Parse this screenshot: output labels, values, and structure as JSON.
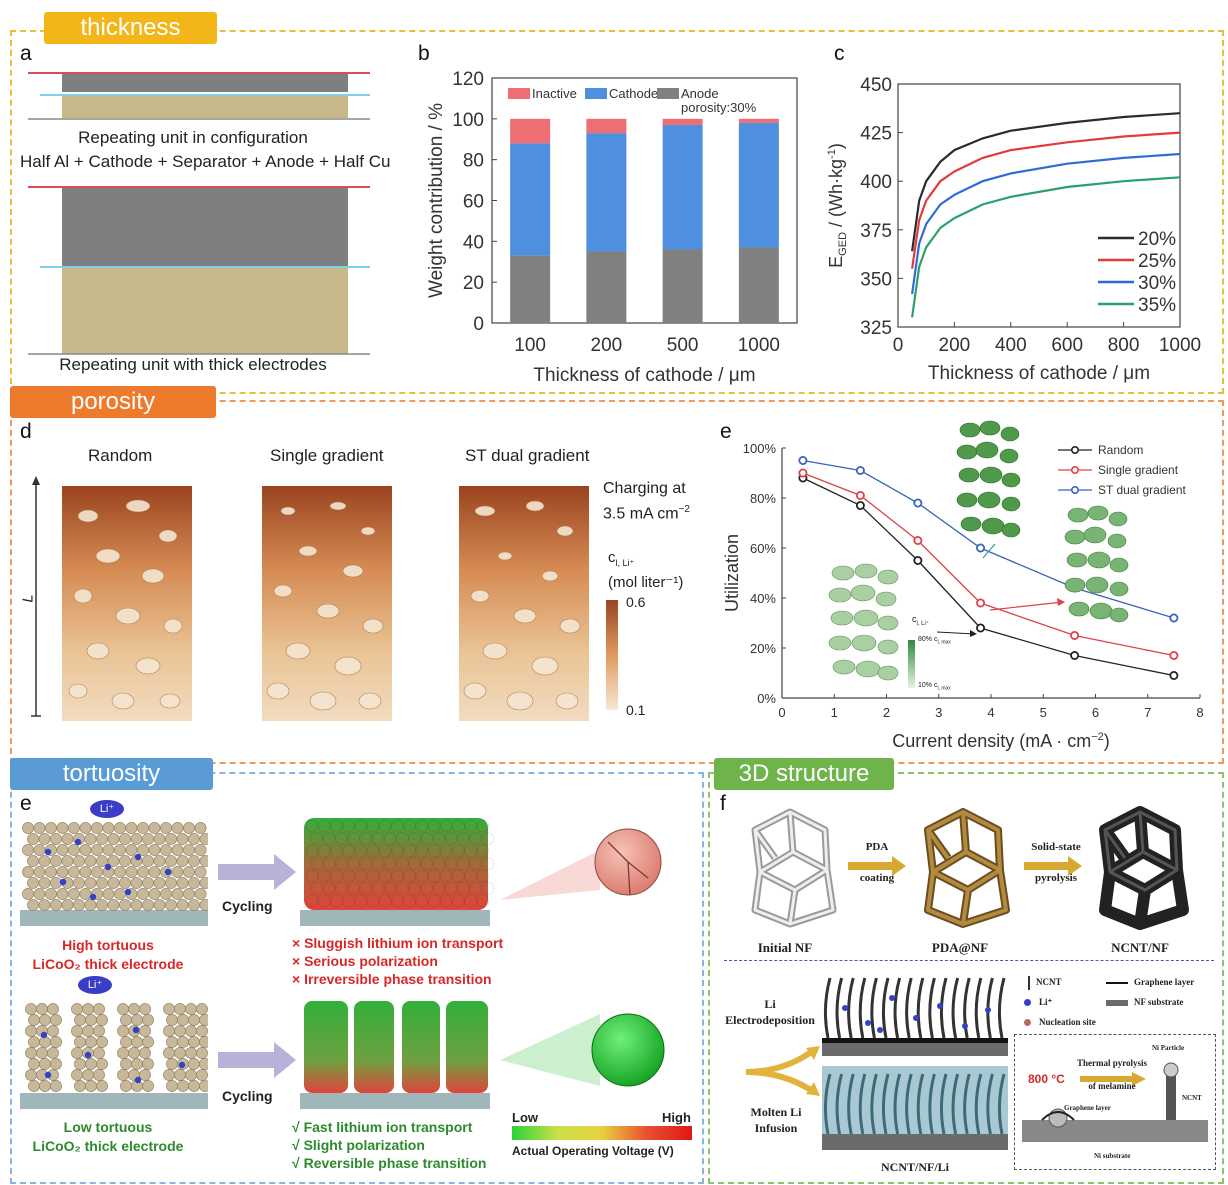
{
  "sections": {
    "thickness": "thickness",
    "porosity": "porosity",
    "tortuosity": "tortuosity",
    "structure3d": "3D structure"
  },
  "colors": {
    "thickness_tag": "#f2b619",
    "porosity_tag": "#ee7b2c",
    "tortuosity_tag": "#5b9bd5",
    "structure_tag": "#6fb44a"
  },
  "panel_a": {
    "label": "a",
    "caption1": "Repeating unit in configuration",
    "caption2": "Half Al + Cathode + Separator + Anode + Half Cu",
    "caption3": "Repeating unit with thick electrodes"
  },
  "panel_b": {
    "label": "b"
  },
  "panel_c": {
    "label": "c"
  },
  "panel_d": {
    "label": "d",
    "titles": [
      "Random",
      "Single gradient",
      "ST dual gradient"
    ],
    "axis": "L",
    "charging1": "Charging at",
    "charging2": "3.5 mA cm",
    "charging_sup": "−2",
    "conc_label": "c",
    "conc_sub": "l, Li⁺",
    "conc_unit": "(mol liter⁻¹)",
    "scale_max": "0.6",
    "scale_min": "0.1"
  },
  "panel_e1": {
    "label": "e",
    "inset_title": "c",
    "inset_sub": "l, Li⁺",
    "inset_high": "80% c",
    "inset_low": "10% c",
    "inset_sub2": "l, max"
  },
  "panel_e2": {
    "label": "e",
    "li_ion": "Li⁺",
    "cycling": "Cycling",
    "high_title1": "High tortuous",
    "high_title2": "LiCoO₂ thick electrode",
    "low_title1": "Low tortuous",
    "low_title2": "LiCoO₂ thick electrode",
    "bad": [
      "Sluggish lithium ion transport",
      "Serious polarization",
      "Irreversible phase transition"
    ],
    "good": [
      "Fast lithium ion transport",
      "Slight polarization",
      "Reversible phase transition"
    ],
    "legend_low": "Low",
    "legend_high": "High",
    "legend_title": "Actual Operating Voltage (V)"
  },
  "panel_f": {
    "label": "f",
    "step1": "PDA",
    "step1b": "coating",
    "step2": "Solid-state",
    "step2b": "pyrolysis",
    "name1": "Initial NF",
    "name2": "PDA@NF",
    "name3": "NCNT/NF",
    "method1a": "Li",
    "method1b": "Electrodeposition",
    "method2a": "Molten Li",
    "method2b": "Infusion",
    "result": "NCNT/NF/Li",
    "legend_ncnt": "NCNT",
    "legend_li": "Li⁺",
    "legend_nuc": "Nucleation site",
    "legend_gl": "Graphene layer",
    "legend_nf": "NF substrate",
    "temp": "800 °C",
    "pyro1": "Thermal pyrolysis",
    "pyro2": "of melamine",
    "ni_particle": "Ni Particle",
    "ncnt": "NCNT",
    "graphene": "Graphene layer",
    "ni_sub": "Ni substrate"
  },
  "chart_data": [
    {
      "id": "b",
      "type": "bar",
      "stacked": true,
      "categories": [
        "100",
        "200",
        "500",
        "1000"
      ],
      "series": [
        {
          "name": "Anode porosity:30%",
          "color": "#808080",
          "values": [
            33,
            35,
            36,
            37
          ]
        },
        {
          "name": "Cathode",
          "color": "#4f8fe0",
          "values": [
            55,
            58,
            61,
            61
          ]
        },
        {
          "name": "Inactive",
          "color": "#ef6e74",
          "values": [
            12,
            7,
            3,
            2
          ]
        }
      ],
      "legend_labels": [
        "Inactive",
        "Cathode",
        "Anode",
        "porosity:30%"
      ],
      "xlabel": "Thickness of cathode / μm",
      "ylabel": "Weight contribution / %",
      "ylim": [
        0,
        120
      ],
      "yticks": [
        0,
        20,
        40,
        60,
        80,
        100,
        120
      ]
    },
    {
      "id": "c",
      "type": "line",
      "x": [
        50,
        75,
        100,
        150,
        200,
        300,
        400,
        600,
        800,
        1000
      ],
      "series": [
        {
          "name": "20%",
          "color": "#2b2b2b",
          "values": [
            364,
            390,
            400,
            410,
            416,
            422,
            426,
            430,
            433,
            435
          ]
        },
        {
          "name": "25%",
          "color": "#e23b3b",
          "values": [
            355,
            380,
            390,
            400,
            405,
            412,
            416,
            420,
            423,
            425
          ]
        },
        {
          "name": "30%",
          "color": "#2f6bd6",
          "values": [
            342,
            368,
            378,
            388,
            393,
            400,
            404,
            409,
            412,
            414
          ]
        },
        {
          "name": "35%",
          "color": "#2aa06a",
          "values": [
            330,
            356,
            366,
            376,
            381,
            388,
            392,
            397,
            400,
            402
          ]
        }
      ],
      "xlabel": "Thickness of cathode / μm",
      "ylabel": "E_GED / (Wh·kg⁻¹)",
      "ylabel_main": "E",
      "ylabel_sub": "GED",
      "ylabel_rest": " / (Wh·kg",
      "ylabel_sup": "-1",
      "ylabel_end": ")",
      "xlim": [
        0,
        1000
      ],
      "ylim": [
        325,
        450
      ],
      "xticks": [
        0,
        200,
        400,
        600,
        800,
        1000
      ],
      "yticks": [
        325,
        350,
        375,
        400,
        425,
        450
      ],
      "legend": "bottom-right"
    },
    {
      "id": "e",
      "type": "line",
      "x": [
        0.4,
        1.5,
        2.6,
        3.8,
        5.6,
        7.5
      ],
      "series": [
        {
          "name": "Random",
          "color": "#222222",
          "values": [
            88,
            77,
            55,
            28,
            17,
            9
          ]
        },
        {
          "name": "Single gradient",
          "color": "#e0404a",
          "values": [
            90,
            81,
            63,
            38,
            25,
            17
          ]
        },
        {
          "name": "ST dual gradient",
          "color": "#3a64b8",
          "values": [
            95,
            91,
            78,
            60,
            44,
            32
          ]
        }
      ],
      "xlabel": "Current density (mA · cm",
      "xlabel_sup": "−2",
      "xlabel_end": ")",
      "ylabel": "Utilization",
      "xlim": [
        0,
        8
      ],
      "ylim": [
        0,
        100
      ],
      "xticks": [
        0,
        1,
        2,
        3,
        4,
        5,
        6,
        7,
        8
      ],
      "yticks": [
        "0%",
        "20%",
        "40%",
        "60%",
        "80%",
        "100%"
      ],
      "legend": "top-right"
    }
  ]
}
